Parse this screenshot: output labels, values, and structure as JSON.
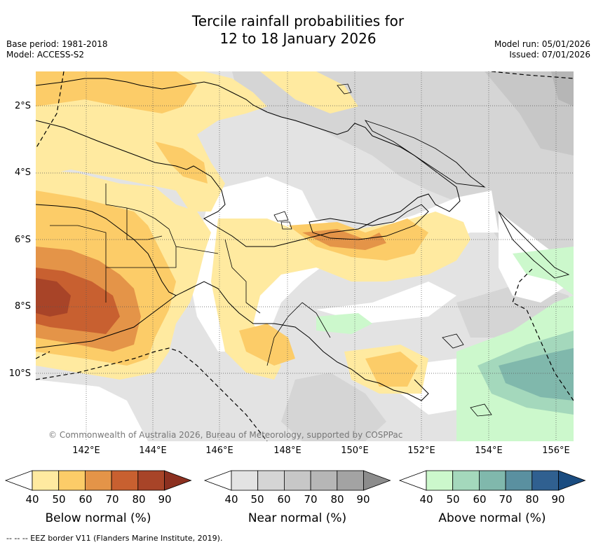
{
  "title_line1": "Tercile rainfall probabilities for",
  "title_line2": "12 to 18 January 2026",
  "base_period": "Base period: 1981-2018",
  "model": "Model: ACCESS-S2",
  "model_run": "Model run: 05/01/2026",
  "issued": "Issued: 07/01/2026",
  "copyright": "© Commonwealth of Australia 2026, Bureau of Meteorology, supported by COSPPac",
  "lat_labels": [
    "2°S",
    "4°S",
    "6°S",
    "8°S",
    "10°S"
  ],
  "lon_labels": [
    "142°E",
    "144°E",
    "146°E",
    "148°E",
    "150°E",
    "152°E",
    "154°E",
    "156°E"
  ],
  "colorbars": [
    {
      "label": "Below normal (%)",
      "ticks": [
        "40",
        "50",
        "60",
        "70",
        "80",
        "90"
      ],
      "colors": [
        "#ffeaa0",
        "#fccc68",
        "#e49448",
        "#c86030",
        "#a84428",
        "#8c3020"
      ]
    },
    {
      "label": "Near normal (%)",
      "ticks": [
        "40",
        "50",
        "60",
        "70",
        "80",
        "90"
      ],
      "colors": [
        "#e3e3e3",
        "#d5d5d5",
        "#c7c7c7",
        "#b6b6b6",
        "#a3a3a3",
        "#8c8c8c"
      ]
    },
    {
      "label": "Above normal (%)",
      "ticks": [
        "40",
        "50",
        "60",
        "70",
        "80",
        "90"
      ],
      "colors": [
        "#ccf8cc",
        "#a4d8bc",
        "#80b8ac",
        "#5a90a0",
        "#306090",
        "#1a4c80"
      ]
    }
  ],
  "footer": "-- -- -- EEZ border V11 (Flanders Marine Institute, 2019)."
}
